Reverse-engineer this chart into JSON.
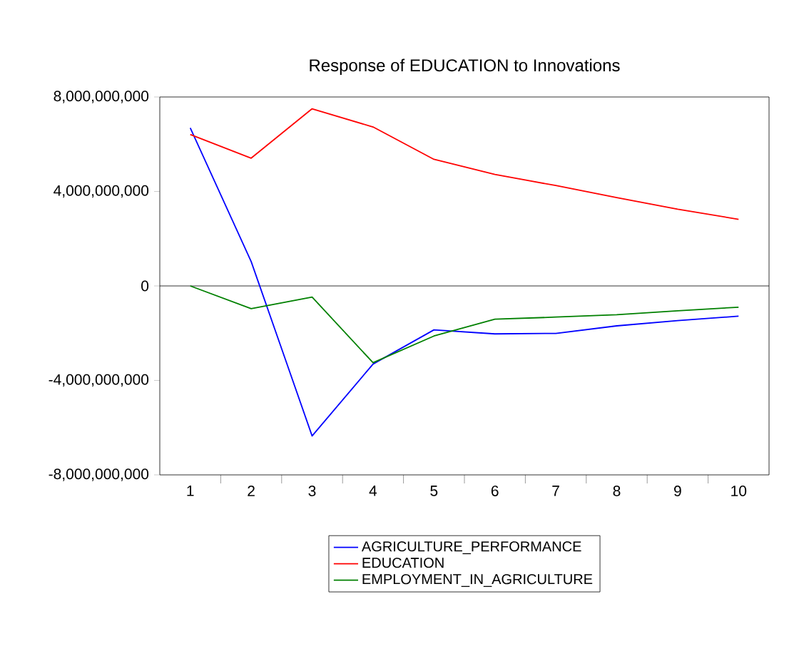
{
  "chart_data": {
    "type": "line",
    "title": "Response of EDUCATION to Innovations",
    "categories": [
      "1",
      "2",
      "3",
      "4",
      "5",
      "6",
      "7",
      "8",
      "9",
      "10"
    ],
    "series": [
      {
        "name": "AGRICULTURE_PERFORMANCE",
        "color": "#0000ff",
        "values": [
          6690000000,
          1030000000,
          -6350000000,
          -3310000000,
          -1860000000,
          -2030000000,
          -2010000000,
          -1690000000,
          -1470000000,
          -1280000000
        ]
      },
      {
        "name": "EDUCATION",
        "color": "#ff0000",
        "values": [
          6410000000,
          5410000000,
          7500000000,
          6730000000,
          5360000000,
          4720000000,
          4250000000,
          3740000000,
          3250000000,
          2820000000
        ]
      },
      {
        "name": "EMPLOYMENT_IN_AGRICULTURE",
        "color": "#008000",
        "values": [
          0,
          -960000000,
          -470000000,
          -3250000000,
          -2120000000,
          -1410000000,
          -1320000000,
          -1220000000,
          -1050000000,
          -900000000
        ]
      }
    ],
    "ylim": [
      -8000000000,
      8000000000
    ],
    "yticks": [
      {
        "value": -8000000000,
        "label": "-8,000,000,000"
      },
      {
        "value": -4000000000,
        "label": "-4,000,000,000"
      },
      {
        "value": 0,
        "label": "0"
      },
      {
        "value": 4000000000,
        "label": "4,000,000,000"
      },
      {
        "value": 8000000000,
        "label": "8,000,000,000"
      }
    ],
    "ref_lines": [
      {
        "axis": "y",
        "value": 0,
        "color": "#000000"
      }
    ],
    "grid": false,
    "legend": "bottom",
    "marker": "none",
    "line_style": "solid"
  }
}
